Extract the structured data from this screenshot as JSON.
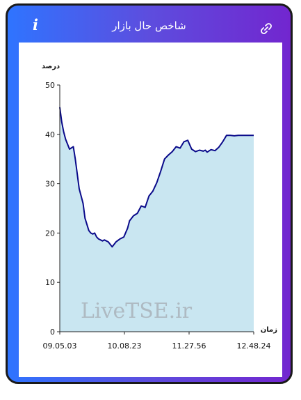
{
  "header": {
    "title": "شاخص حال بازار",
    "info_icon": "i",
    "link_icon": "link-icon"
  },
  "watermark": "LiveTSE.ir",
  "chart_data": {
    "type": "area",
    "ylabel": "درصد",
    "xlabel": "زمان",
    "ylim": [
      0,
      50
    ],
    "y_ticks": [
      0,
      10,
      20,
      30,
      40,
      50
    ],
    "x_ticks": [
      "09.05.03",
      "10.08.23",
      "11.27.56",
      "12.48.24"
    ],
    "grid": false,
    "colors": {
      "line": "#0a0a8a",
      "fill": "#c9e6f1"
    },
    "series": [
      {
        "x": [
          0,
          0.01,
          0.02,
          0.03,
          0.05,
          0.07,
          0.08,
          0.09,
          0.1,
          0.12,
          0.13,
          0.15,
          0.16,
          0.17,
          0.18,
          0.19,
          0.2,
          0.22,
          0.23,
          0.25,
          0.27,
          0.29,
          0.31,
          0.33,
          0.35,
          0.36,
          0.37,
          0.38,
          0.4,
          0.42,
          0.44,
          0.46,
          0.48,
          0.5,
          0.52,
          0.54,
          0.56,
          0.58,
          0.6,
          0.62,
          0.64,
          0.66,
          0.68,
          0.7,
          0.72,
          0.74,
          0.75,
          0.76,
          0.78,
          0.8,
          0.82,
          0.84,
          0.86,
          0.88,
          0.9,
          0.92,
          0.93,
          0.935,
          0.95,
          0.97,
          1.0
        ],
        "values": [
          45.5,
          42.5,
          40.5,
          39,
          37,
          37.5,
          35,
          32,
          29,
          26,
          23,
          20.5,
          20,
          19.8,
          20,
          19.2,
          18.8,
          18.4,
          18.6,
          18.2,
          17.2,
          18.2,
          18.8,
          19.2,
          21,
          22.5,
          23,
          23.5,
          24,
          25.5,
          25.2,
          27.5,
          28.5,
          30.2,
          32.5,
          35,
          35.8,
          36.5,
          37.5,
          37.2,
          38.5,
          38.8,
          37,
          36.5,
          36.8,
          36.6,
          36.8,
          36.4,
          36.9,
          36.7,
          37.4,
          38.5,
          39.8,
          39.8,
          39.7,
          39.8,
          39.8,
          39.8,
          39.8,
          39.8,
          39.8
        ]
      }
    ]
  }
}
